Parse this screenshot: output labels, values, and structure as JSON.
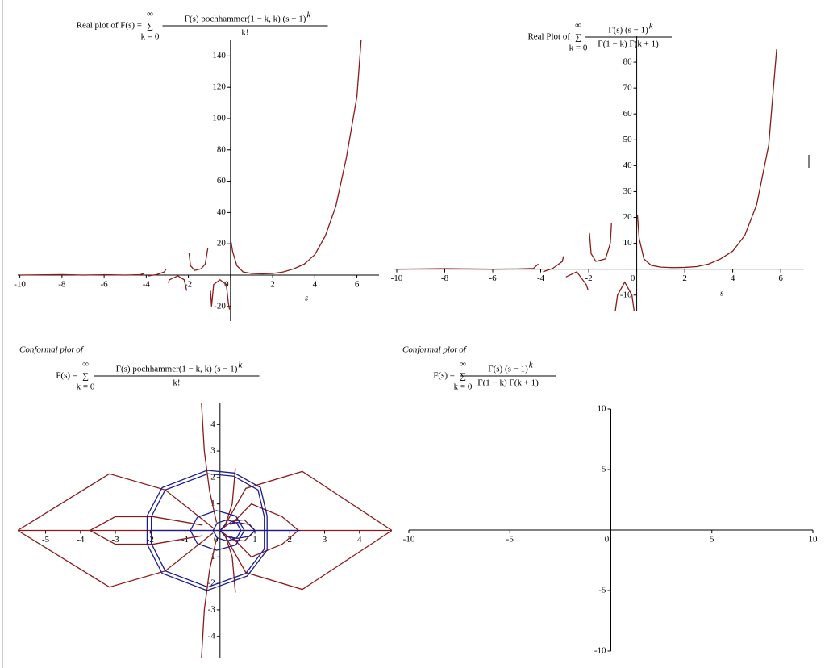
{
  "chart_data": [
    {
      "type": "line",
      "title": {
        "prefix": "Real plot of F(s) =",
        "sum_symbol": "∑",
        "sum_upper": "∞",
        "sum_lower": "k = 0",
        "numerator": "Γ(s)  pochhammer(1 − k, k)  (s − 1)",
        "exponent": "k",
        "denominator": "k!"
      },
      "x_label": "s",
      "xlim": [
        -10.1,
        7.05
      ],
      "ylim": [
        -29.4,
        150
      ],
      "xticks": [
        -10,
        -8,
        -6,
        -4,
        -2,
        0,
        2,
        4,
        6
      ],
      "yticks": [
        -20,
        20,
        40,
        60,
        80,
        100,
        120,
        140
      ],
      "series": [
        {
          "color": "#8b1a1a",
          "x": [
            -10,
            -8,
            -7,
            -6,
            -5,
            -4.3,
            -4.1,
            -4,
            -3.9,
            -3.5,
            -3.15,
            -3.05,
            -3,
            -2.95,
            -2.9,
            -2.5,
            -2.2,
            -2.08,
            -2,
            -1.97,
            -1.9,
            -1.7,
            -1.4,
            -1.2,
            -1.08,
            -1,
            -0.95,
            -0.9,
            -0.8,
            -0.5,
            -0.2,
            -0.1,
            -0.05,
            0,
            0.03,
            0.1,
            0.3,
            0.6,
            1,
            1.5,
            2,
            2.5,
            3,
            3.5,
            4,
            4.5,
            5,
            5.5,
            6,
            6.2
          ],
          "values": [
            0,
            0.3,
            0,
            0.2,
            0,
            0.2,
            1,
            null,
            -0.5,
            0.3,
            2,
            4,
            null,
            -5,
            -3,
            -0.5,
            -3,
            -10,
            null,
            14,
            6,
            3,
            4,
            7,
            17,
            null,
            -10,
            -20,
            -6,
            -3,
            -6,
            -18,
            -22,
            null,
            21,
            15,
            6,
            2,
            1,
            0.8,
            1,
            2,
            4,
            7,
            13,
            25,
            44,
            75,
            114,
            150
          ]
        }
      ]
    },
    {
      "type": "line",
      "title": {
        "prefix": "Real Plot of",
        "sum_symbol": "∑",
        "sum_upper": "∞",
        "sum_lower": "k = 0",
        "numerator": "Γ(s)  (s − 1)",
        "exponent": "k",
        "denominator": "Γ(1 − k)  Γ(k + 1)"
      },
      "x_label": "s",
      "xlim": [
        -10.1,
        6.97
      ],
      "ylim": [
        -16,
        90
      ],
      "xticks": [
        -10,
        -8,
        -6,
        -4,
        -2,
        0,
        2,
        4,
        6
      ],
      "yticks": [
        -10,
        10,
        20,
        30,
        40,
        50,
        60,
        70,
        80
      ],
      "series": [
        {
          "color": "#8b1a1a",
          "x": [
            -10,
            -8,
            -6,
            -5,
            -4.3,
            -4.1,
            -4,
            -3.9,
            -3.5,
            -3.1,
            -3.05,
            -3,
            -2.95,
            -2.5,
            -2.1,
            -2.03,
            -2,
            -1.97,
            -1.9,
            -1.7,
            -1.3,
            -1.1,
            -1.05,
            -1,
            -0.95,
            -0.8,
            -0.5,
            -0.2,
            -0.05,
            0,
            0.03,
            0.1,
            0.3,
            0.6,
            1,
            1.5,
            2,
            2.5,
            3,
            3.5,
            4,
            4.5,
            5,
            5.5,
            5.83
          ],
          "values": [
            0,
            0.2,
            0,
            0.1,
            0.3,
            2,
            null,
            -1,
            0.3,
            3,
            5,
            null,
            -3,
            -1,
            -6,
            -8,
            null,
            14,
            6,
            3,
            4,
            10,
            18,
            null,
            -20,
            -10,
            -5,
            -10,
            -20,
            null,
            21,
            12,
            4,
            1.5,
            0.8,
            0.6,
            0.7,
            1,
            2,
            4,
            7,
            13,
            25,
            48,
            85
          ]
        }
      ]
    },
    {
      "type": "line",
      "heading": "Conformal plot of",
      "title": {
        "prefix": "F(s) =",
        "sum_symbol": "∑",
        "sum_upper": "∞",
        "sum_lower": "k = 0",
        "numerator": "Γ(s)  pochhammer(1 − k, k)  (s − 1)",
        "exponent": "k",
        "denominator": "k!"
      },
      "xlim": [
        -5.8,
        4.93
      ],
      "ylim": [
        -4.8,
        4.8
      ],
      "xticks": [
        -5,
        -4,
        -3,
        -2,
        -1,
        0,
        1,
        2,
        3,
        4
      ],
      "yticks": [
        -4,
        -3,
        -2,
        -1,
        1,
        2,
        3,
        4
      ],
      "series": [
        {
          "color": "#8b1a1a",
          "x": [
            -5.8,
            4.93
          ],
          "values": [
            0,
            0
          ]
        },
        {
          "color": "#8b1a1a",
          "x": [
            -0.2,
            -1.57,
            -3.17,
            -5.8,
            -3.17,
            -1.57,
            -0.2
          ],
          "values": [
            0.1,
            1.53,
            2.14,
            0,
            -2.14,
            -1.53,
            -0.1
          ]
        },
        {
          "color": "#8b1a1a",
          "x": [
            0.1,
            0.74,
            2.36,
            4.93,
            2.36,
            0.74,
            0.1
          ],
          "values": [
            0.1,
            1.59,
            2.23,
            0,
            -2.23,
            -1.59,
            -0.1
          ]
        },
        {
          "color": "#8b1a1a",
          "x": [
            -0.5,
            -1.92,
            -3,
            -3.73,
            -3,
            -1.92,
            -0.5
          ],
          "values": [
            0.2,
            0.52,
            0.52,
            0,
            -0.52,
            -0.52,
            -0.2
          ]
        },
        {
          "color": "#8b1a1a",
          "x": [
            0.3,
            0.9,
            1.78,
            2.25,
            1.78,
            0.9,
            0.3
          ],
          "values": [
            0.2,
            1,
            0.52,
            0,
            -0.52,
            -1,
            -0.2
          ]
        },
        {
          "color": "#8b1a1a",
          "x": [
            -0.53,
            -0.45,
            -0.3,
            -0.1
          ],
          "values": [
            4.8,
            3,
            1.5,
            0.3
          ]
        },
        {
          "color": "#8b1a1a",
          "x": [
            -0.53,
            -0.45,
            -0.3,
            -0.1
          ],
          "values": [
            -4.8,
            -3,
            -1.5,
            -0.3
          ]
        },
        {
          "color": "#8b1a1a",
          "x": [
            0.44,
            0.35,
            0.15
          ],
          "values": [
            2.35,
            1,
            0.2
          ]
        },
        {
          "color": "#8b1a1a",
          "x": [
            0.44,
            0.35,
            0.15
          ],
          "values": [
            -2.35,
            -1,
            -0.2
          ]
        },
        {
          "color": "#8b1a1a",
          "x": [
            0,
            0.35,
            0.7,
            1,
            0.7,
            0.35,
            0,
            -0.1,
            0
          ],
          "values": [
            0,
            0.35,
            0.4,
            0,
            -0.4,
            -0.35,
            0,
            0,
            0
          ]
        },
        {
          "color": "#1c1c8c",
          "x": [
            -1.97,
            -1.57,
            -0.35,
            0.39,
            1.09,
            1.27,
            1.27,
            0.74,
            -0.35,
            -1.57,
            -1.97,
            -1.97
          ],
          "values": [
            0.52,
            1.53,
            2.14,
            2.05,
            1.53,
            0.52,
            -0.7,
            -1.62,
            -2.14,
            -1.53,
            -0.49,
            0.52
          ]
        },
        {
          "color": "#1c1c8c",
          "x": [
            -2.09,
            -1.66,
            -0.37,
            0.41,
            1.16,
            1.35,
            1.35,
            0.78,
            -0.37,
            -1.66,
            -2.09,
            -2.09
          ],
          "values": [
            0.55,
            1.62,
            2.27,
            2.17,
            1.62,
            0.55,
            -0.74,
            -1.72,
            -2.27,
            -1.62,
            -0.52,
            0.55
          ]
        },
        {
          "color": "#1c1c8c",
          "x": [
            -0.85,
            -0.65,
            -0.1,
            0.45,
            0.7,
            0.45,
            -0.1,
            -0.65,
            -0.85
          ],
          "values": [
            0,
            0.5,
            0.75,
            0.55,
            0,
            -0.55,
            -0.75,
            -0.5,
            0
          ]
        },
        {
          "color": "#1c1c8c",
          "x": [
            -0.2,
            -0.08,
            0.2,
            0.48,
            0.6,
            0.48,
            0.2,
            -0.08,
            -0.2
          ],
          "values": [
            0,
            0.28,
            0.4,
            0.28,
            0,
            -0.28,
            -0.4,
            -0.28,
            0
          ]
        },
        {
          "color": "#1c1c8c",
          "x": [
            0,
            0.15,
            0.5,
            0.85,
            1,
            0.85,
            0.5,
            0.15,
            0
          ],
          "values": [
            0,
            0.22,
            0.3,
            0.22,
            0,
            -0.22,
            -0.3,
            -0.22,
            0
          ]
        },
        {
          "color": "#1c1c8c",
          "x": [
            -2,
            2.3
          ],
          "values": [
            0,
            0
          ]
        }
      ]
    },
    {
      "type": "line",
      "heading": "Conformal plot of",
      "title": {
        "prefix": "F(s) =",
        "sum_symbol": "∑",
        "sum_upper": "∞",
        "sum_lower": "k = 0",
        "numerator": "Γ(s)  (s − 1)",
        "exponent": "k",
        "denominator": "Γ(1 − k)  Γ(k + 1)"
      },
      "xlim": [
        -10,
        10
      ],
      "ylim": [
        -10,
        10
      ],
      "xticks": [
        -10,
        -5,
        0,
        5,
        10
      ],
      "yticks": [
        -10,
        -5,
        5,
        10
      ],
      "series": []
    }
  ]
}
